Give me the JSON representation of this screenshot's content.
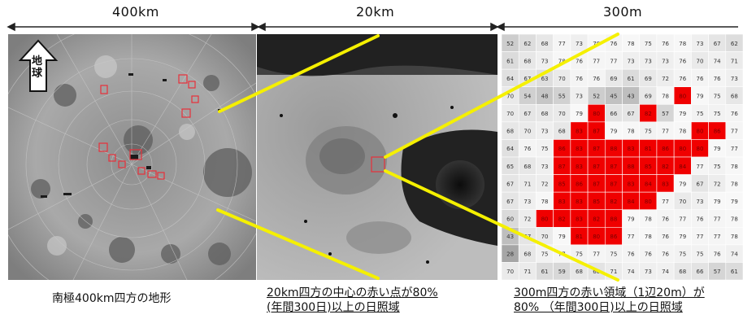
{
  "scales": {
    "left": "400km",
    "middle": "20km",
    "right": "300m"
  },
  "earth_marker": "地球",
  "captions": {
    "left": "南極400km四方の地形",
    "middle_line1": "20km四方の中心の赤い点が80%",
    "middle_line2": "(年間300日)以上の日照域",
    "right_line1": "300m四方の赤い領域（1辺20m）が",
    "right_line2": "80% （年間300日)以上の日照域"
  },
  "colors": {
    "sunlit_red": "#f00000",
    "connector_yellow": "#f5f000",
    "marker_red": "#e8303a"
  },
  "grid": {
    "rows": [
      [
        "52",
        "62",
        "68",
        "77",
        "73",
        "78",
        "76",
        "78",
        "75",
        "76",
        "78",
        "73",
        "67",
        "62"
      ],
      [
        "61",
        "68",
        "73",
        "78",
        "76",
        "77",
        "77",
        "73",
        "73",
        "73",
        "76",
        "70",
        "74",
        "71"
      ],
      [
        "64",
        "67",
        "63",
        "70",
        "76",
        "76",
        "69",
        "61",
        "69",
        "72",
        "76",
        "76",
        "76",
        "73"
      ],
      [
        "70",
        "54",
        "48",
        "55",
        "73",
        "52",
        "45",
        "43",
        "69",
        "78",
        "80",
        "79",
        "75",
        "68"
      ],
      [
        "70",
        "67",
        "68",
        "70",
        "79",
        "80",
        "66",
        "67",
        "82",
        "57",
        "79",
        "75",
        "75",
        "76"
      ],
      [
        "68",
        "70",
        "73",
        "68",
        "83",
        "87",
        "79",
        "78",
        "75",
        "77",
        "78",
        "80",
        "86",
        "77"
      ],
      [
        "64",
        "76",
        "75",
        "86",
        "83",
        "87",
        "88",
        "83",
        "81",
        "86",
        "80",
        "80",
        "79",
        "77"
      ],
      [
        "65",
        "68",
        "73",
        "87",
        "83",
        "87",
        "87",
        "88",
        "85",
        "82",
        "84",
        "77",
        "75",
        "78"
      ],
      [
        "67",
        "71",
        "72",
        "85",
        "86",
        "87",
        "87",
        "83",
        "84",
        "83",
        "79",
        "67",
        "72",
        "78"
      ],
      [
        "67",
        "73",
        "78",
        "83",
        "83",
        "85",
        "82",
        "84",
        "80",
        "77",
        "70",
        "73",
        "79",
        "79"
      ],
      [
        "60",
        "72",
        "80",
        "82",
        "83",
        "82",
        "88",
        "79",
        "78",
        "76",
        "77",
        "76",
        "77",
        "78"
      ],
      [
        "43",
        "67",
        "70",
        "79",
        "81",
        "80",
        "86",
        "77",
        "78",
        "76",
        "79",
        "77",
        "77",
        "78"
      ],
      [
        "28",
        "68",
        "75",
        "77",
        "75",
        "77",
        "75",
        "76",
        "76",
        "76",
        "75",
        "75",
        "76",
        "74"
      ],
      [
        "70",
        "71",
        "61",
        "59",
        "68",
        "66",
        "71",
        "74",
        "73",
        "74",
        "68",
        "66",
        "57",
        "61"
      ]
    ]
  }
}
